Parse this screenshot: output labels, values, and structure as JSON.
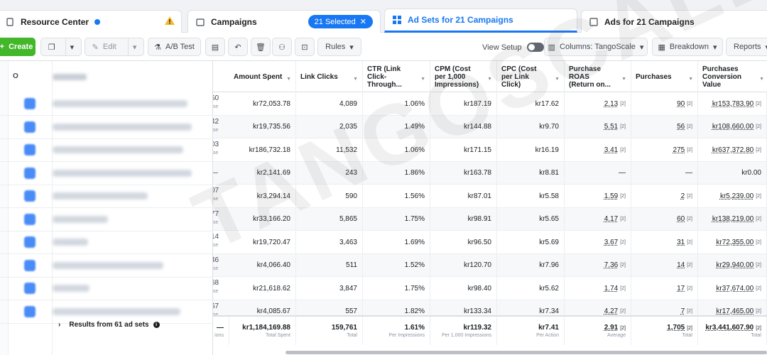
{
  "tabs": {
    "resource_center": "Resource Center",
    "campaigns": "Campaigns",
    "selected_pill": "21 Selected",
    "ad_sets": "Ad Sets for 21 Campaigns",
    "ads": "Ads for 21 Campaigns"
  },
  "toolbar": {
    "create": "Create",
    "edit": "Edit",
    "ab_test": "A/B Test",
    "rules": "Rules",
    "view_setup": "View Setup",
    "columns": "Columns: TangoScale",
    "breakdown": "Breakdown",
    "reports": "Reports"
  },
  "headers": {
    "amount_spent": "Amount Spent",
    "link_clicks": "Link Clicks",
    "ctr": "CTR (Link Click-Through...",
    "cpm": "CPM (Cost per 1,000 Impressions)",
    "cpc": "CPC (Cost per Link Click)",
    "purchase_roas": "Purchase ROAS (Return on...",
    "purchases": "Purchases",
    "conversion_value": "Purchases Conversion Value"
  },
  "rows": [
    {
      "partial": "60",
      "spent": "kr72,053.78",
      "clicks": "4,089",
      "ctr": "1.06%",
      "cpm": "kr187.19",
      "cpc": "kr17.62",
      "roas": "2.13",
      "purchases": "90",
      "value": "kr153,783.90"
    },
    {
      "partial": "42",
      "spent": "kr19,735.56",
      "clicks": "2,035",
      "ctr": "1.49%",
      "cpm": "kr144.88",
      "cpc": "kr9.70",
      "roas": "5.51",
      "purchases": "56",
      "value": "kr108,660.00"
    },
    {
      "partial": "03",
      "spent": "kr186,732.18",
      "clicks": "11,532",
      "ctr": "1.06%",
      "cpm": "kr171.15",
      "cpc": "kr16.19",
      "roas": "3.41",
      "purchases": "275",
      "value": "kr637,372.80"
    },
    {
      "partial": "—",
      "spent": "kr2,141.69",
      "clicks": "243",
      "ctr": "1.86%",
      "cpm": "kr163.78",
      "cpc": "kr8.81",
      "roas": "—",
      "purchases": "—",
      "value": "kr0.00"
    },
    {
      "partial": "07",
      "spent": "kr3,294.14",
      "clicks": "590",
      "ctr": "1.56%",
      "cpm": "kr87.01",
      "cpc": "kr5.58",
      "roas": "1.59",
      "purchases": "2",
      "value": "kr5,239.00"
    },
    {
      "partial": "77",
      "spent": "kr33,166.20",
      "clicks": "5,865",
      "ctr": "1.75%",
      "cpm": "kr98.91",
      "cpc": "kr5.65",
      "roas": "4.17",
      "purchases": "60",
      "value": "kr138,219.00"
    },
    {
      "partial": "14",
      "spent": "kr19,720.47",
      "clicks": "3,463",
      "ctr": "1.69%",
      "cpm": "kr96.50",
      "cpc": "kr5.69",
      "roas": "3.67",
      "purchases": "31",
      "value": "kr72,355.00"
    },
    {
      "partial": "46",
      "spent": "kr4,066.40",
      "clicks": "511",
      "ctr": "1.52%",
      "cpm": "kr120.70",
      "cpc": "kr7.96",
      "roas": "7.36",
      "purchases": "14",
      "value": "kr29,940.00"
    },
    {
      "partial": "68",
      "spent": "kr21,618.62",
      "clicks": "3,847",
      "ctr": "1.75%",
      "cpm": "kr98.40",
      "cpc": "kr5.62",
      "roas": "1.74",
      "purchases": "17",
      "value": "kr37,674.00"
    },
    {
      "partial": "67",
      "spent": "kr4,085.67",
      "clicks": "557",
      "ctr": "1.82%",
      "cpm": "kr133.34",
      "cpc": "kr7.34",
      "roas": "4.27",
      "purchases": "7",
      "value": "kr17,465.00"
    }
  ],
  "partial_sub": "ase",
  "tag": "[2]",
  "footer": {
    "results": "Results from 61 ad sets",
    "partial_dash": "—",
    "partial_sub": "ions",
    "spent": "kr1,184,169.88",
    "spent_l": "Total Spent",
    "clicks": "159,761",
    "clicks_l": "Total",
    "ctr": "1.61%",
    "ctr_l": "Per Impressions",
    "cpm": "kr119.32",
    "cpm_l": "Per 1,000 Impressions",
    "cpc": "kr7.41",
    "cpc_l": "Per Action",
    "roas": "2.91",
    "roas_l": "Average",
    "purchases": "1,705",
    "purchases_l": "Total",
    "value": "kr3,441,607.90",
    "value_l": "Total"
  },
  "watermark": "TANGOSCALE",
  "colors": {
    "accent": "#1877f2",
    "create": "#42b72a",
    "warning": "#f7b928"
  }
}
